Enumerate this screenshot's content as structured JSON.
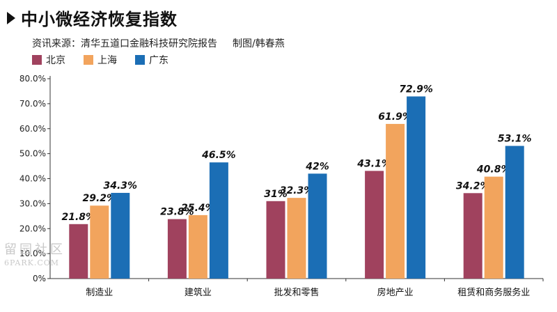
{
  "header": {
    "title": "中小微经济恢复指数",
    "source": "资讯来源：清华五道口金融科技研究院报告",
    "credit": "制图/韩春燕"
  },
  "watermark": {
    "line1": "留园社区",
    "line2": "6PARK.COM"
  },
  "colors": {
    "beijing": "#a0425e",
    "shanghai": "#f2a45d",
    "guangdong": "#1b6eb5"
  },
  "chart_data": {
    "type": "bar",
    "categories": [
      "制造业",
      "建筑业",
      "批发和零售",
      "房地产业",
      "租赁和商务服务业"
    ],
    "series": [
      {
        "name": "北京",
        "values": [
          21.8,
          23.8,
          31,
          43.1,
          34.2
        ],
        "labels": [
          "21.8%",
          "23.8%",
          "31%",
          "43.1%",
          "34.2%"
        ]
      },
      {
        "name": "上海",
        "values": [
          29.2,
          25.4,
          32.3,
          61.9,
          40.8
        ],
        "labels": [
          "29.2%",
          "25.4%",
          "32.3%",
          "61.9%",
          "40.8%"
        ]
      },
      {
        "name": "广东",
        "values": [
          34.3,
          46.5,
          42,
          72.9,
          53.1
        ],
        "labels": [
          "34.3%",
          "46.5%",
          "42%",
          "72.9%",
          "53.1%"
        ]
      }
    ],
    "yticks": [
      "0%",
      "10.0%",
      "20.0%",
      "30.0%",
      "40.0%",
      "50.0%",
      "60.0%",
      "70.0%",
      "80.0%"
    ],
    "ylim": [
      0,
      80
    ],
    "grid": false,
    "legend_position": "top-left"
  }
}
